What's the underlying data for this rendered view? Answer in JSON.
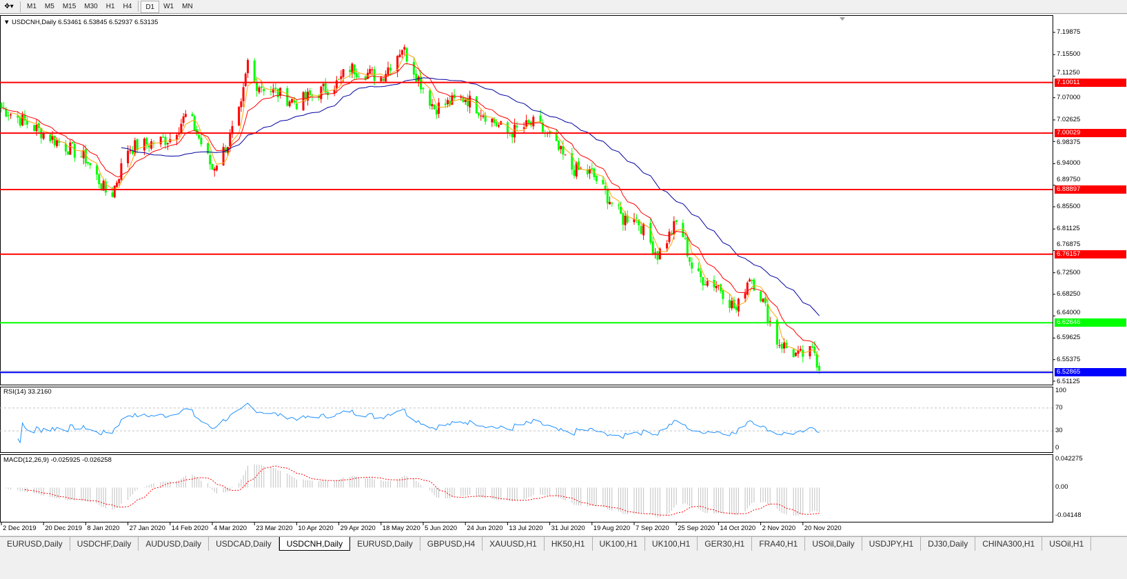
{
  "toolbar": {
    "timeframes": [
      "M1",
      "M5",
      "M15",
      "M30",
      "H1",
      "H4",
      "D1",
      "W1",
      "MN"
    ],
    "active": "D1"
  },
  "chart": {
    "symbol_line": "USDCNH,Daily  6.53461 6.53845 6.52937 6.53135",
    "price_ticks": [
      "7.19875",
      "7.15500",
      "7.11250",
      "7.07000",
      "7.02625",
      "6.98375",
      "6.94000",
      "6.89750",
      "6.85500",
      "6.81125",
      "6.76875",
      "6.72500",
      "6.68250",
      "6.64000",
      "6.59625",
      "6.55375",
      "6.51125"
    ],
    "levels": [
      {
        "price": "7.10011",
        "color": "#ff0000"
      },
      {
        "price": "7.00029",
        "color": "#ff0000"
      },
      {
        "price": "6.88897",
        "color": "#ff0000"
      },
      {
        "price": "6.76157",
        "color": "#ff0000"
      },
      {
        "price": "6.62646",
        "color": "#00ff00"
      },
      {
        "price": "6.52865",
        "color": "#0000ff"
      }
    ],
    "colors": {
      "bear_candle": "#00ff00",
      "bull_candle": "#ff0000",
      "ma_fast": "#ffa500",
      "ma_mid": "#ff0000",
      "ma_slow": "#0000a0",
      "rsi": "#1e90ff",
      "macd_signal": "#ff0000",
      "macd_hist": "#c0c0c0"
    },
    "close_keypoints": [
      [
        "2 Dec 2019",
        7.05
      ],
      [
        "20 Dec 2019",
        7.0
      ],
      [
        "8 Jan 2020",
        6.95
      ],
      [
        "19 Jan 2020",
        6.87
      ],
      [
        "27 Jan 2020",
        6.97
      ],
      [
        "14 Feb 2020",
        6.99
      ],
      [
        "22 Feb 2020",
        7.04
      ],
      [
        "4 Mar 2020",
        6.93
      ],
      [
        "11 Mar 2020",
        6.98
      ],
      [
        "17 Mar 2020",
        7.05
      ],
      [
        "20 Mar 2020",
        7.14
      ],
      [
        "23 Mar 2020",
        7.1
      ],
      [
        "10 Apr 2020",
        7.06
      ],
      [
        "29 Apr 2020",
        7.1
      ],
      [
        "3 May 2020",
        7.13
      ],
      [
        "18 May 2020",
        7.11
      ],
      [
        "27 May 2020",
        7.17
      ],
      [
        "5 Jun 2020",
        7.09
      ],
      [
        "10 Jun 2020",
        7.05
      ],
      [
        "24 Jun 2020",
        7.07
      ],
      [
        "13 Jul 2020",
        7.0
      ],
      [
        "25 Jul 2020",
        7.02
      ],
      [
        "31 Jul 2020",
        6.99
      ],
      [
        "10 Aug 2020",
        6.93
      ],
      [
        "19 Aug 2020",
        6.92
      ],
      [
        "2 Sep 2020",
        6.83
      ],
      [
        "7 Sep 2020",
        6.84
      ],
      [
        "17 Sep 2020",
        6.76
      ],
      [
        "26 Sep 2020",
        6.83
      ],
      [
        "3 Oct 2020",
        6.72
      ],
      [
        "14 Oct 2020",
        6.7
      ],
      [
        "22 Oct 2020",
        6.65
      ],
      [
        "28 Oct 2020",
        6.72
      ],
      [
        "2 Nov 2020",
        6.68
      ],
      [
        "9 Nov 2020",
        6.59
      ],
      [
        "18 Nov 2020",
        6.56
      ],
      [
        "25 Nov 2020",
        6.57
      ],
      [
        "27 Nov 2020",
        6.53135
      ]
    ],
    "last_price": "6.53135",
    "date_labels": [
      "2 Dec 2019",
      "20 Dec 2019",
      "8 Jan 2020",
      "27 Jan 2020",
      "14 Feb 2020",
      "4 Mar 2020",
      "23 Mar 2020",
      "10 Apr 2020",
      "29 Apr 2020",
      "18 May 2020",
      "5 Jun 2020",
      "24 Jun 2020",
      "13 Jul 2020",
      "31 Jul 2020",
      "19 Aug 2020",
      "7 Sep 2020",
      "25 Sep 2020",
      "14 Oct 2020",
      "2 Nov 2020",
      "20 Nov 2020"
    ]
  },
  "rsi": {
    "title": "RSI(14) 33.2160",
    "ticks": [
      "100",
      "70",
      "30",
      "0"
    ]
  },
  "macd": {
    "title": "MACD(12,26,9) -0.025925 -0.026258",
    "ticks": [
      "0.042275",
      "0.00",
      "-0.04148"
    ]
  },
  "tabs": [
    {
      "label": "EURUSD,Daily"
    },
    {
      "label": "USDCHF,Daily"
    },
    {
      "label": "AUDUSD,Daily"
    },
    {
      "label": "USDCAD,Daily"
    },
    {
      "label": "USDCNH,Daily",
      "active": true
    },
    {
      "label": "EURUSD,Daily"
    },
    {
      "label": "GBPUSD,H4"
    },
    {
      "label": "XAUUSD,H1"
    },
    {
      "label": "HK50,H1"
    },
    {
      "label": "UK100,H1"
    },
    {
      "label": "UK100,H1"
    },
    {
      "label": "GER30,H1"
    },
    {
      "label": "FRA40,H1"
    },
    {
      "label": "USOil,Daily"
    },
    {
      "label": "USDJPY,H1"
    },
    {
      "label": "DJ30,Daily"
    },
    {
      "label": "CHINA300,H1"
    },
    {
      "label": "USOil,H1"
    }
  ]
}
